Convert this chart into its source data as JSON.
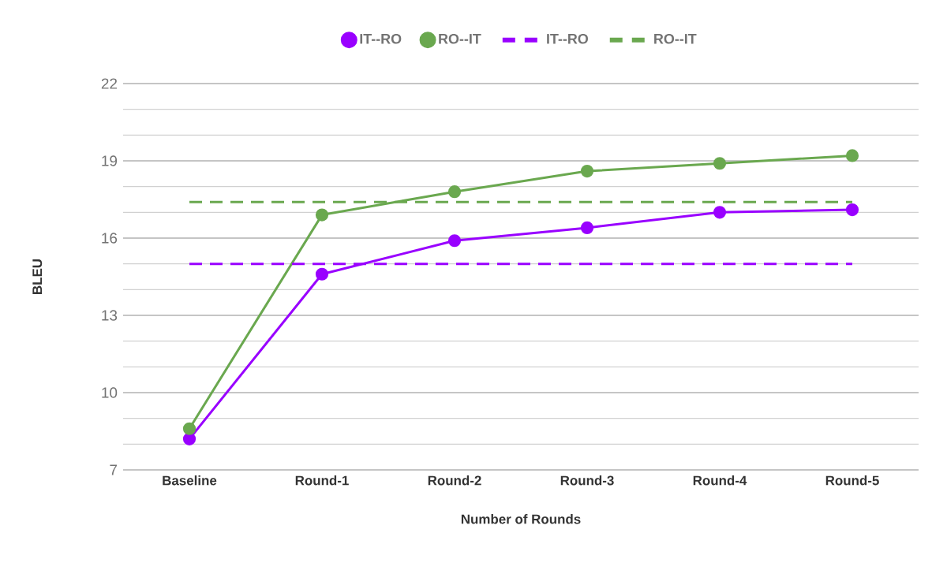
{
  "chart_data": {
    "type": "line",
    "xlabel": "Number of Rounds",
    "ylabel": "BLEU",
    "categories": [
      "Baseline",
      "Round-1",
      "Round-2",
      "Round-3",
      "Round-4",
      "Round-5"
    ],
    "series": [
      {
        "name": "IT--RO",
        "color": "#9900ff",
        "marker": "circle",
        "line_style": "solid",
        "values": [
          8.2,
          14.6,
          15.9,
          16.4,
          17.0,
          17.1
        ]
      },
      {
        "name": "RO--IT",
        "color": "#6aa84f",
        "marker": "circle",
        "line_style": "solid",
        "values": [
          8.6,
          16.9,
          17.8,
          18.6,
          18.9,
          19.2
        ]
      },
      {
        "name": "IT--RO",
        "color": "#9900ff",
        "marker": "none",
        "line_style": "dashed",
        "values": [
          15.0,
          15.0,
          15.0,
          15.0,
          15.0,
          15.0
        ]
      },
      {
        "name": "RO--IT",
        "color": "#6aa84f",
        "marker": "none",
        "line_style": "dashed",
        "values": [
          17.4,
          17.4,
          17.4,
          17.4,
          17.4,
          17.4
        ]
      }
    ],
    "ylim": [
      7,
      22
    ],
    "yticks": [
      7,
      10,
      13,
      16,
      19,
      22
    ],
    "grid": "y",
    "legend": "top"
  }
}
